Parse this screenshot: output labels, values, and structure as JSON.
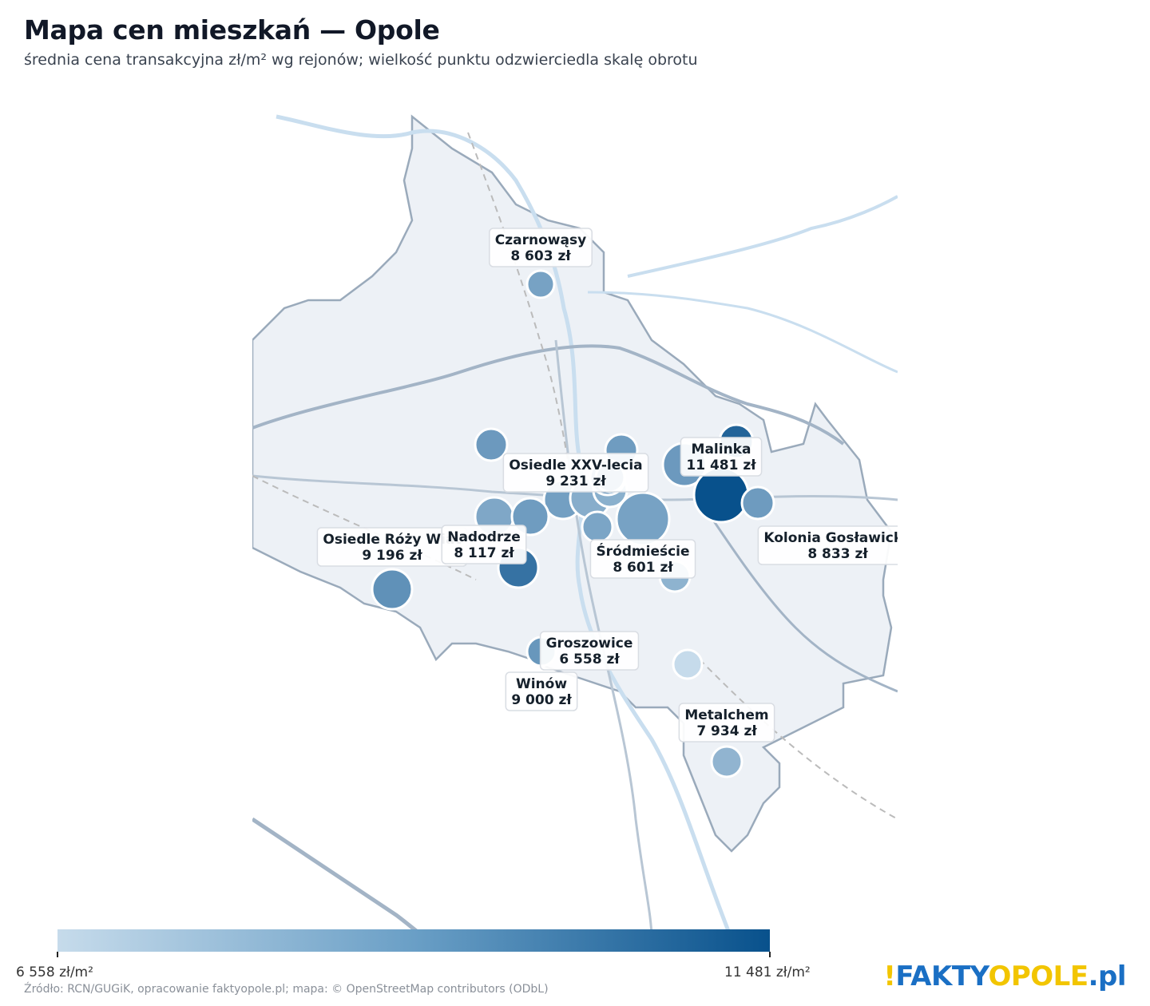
{
  "title": "Mapa cen mieszkań — Opole",
  "subtitle": "średnia cena transakcyjna zł/m² wg rejonów; wielkość punktu odzwierciedla skalę obrotu",
  "colors": {
    "scale_min": "#c6dbeb",
    "scale_max": "#08518c",
    "city_fill": "#edf1f6",
    "road": "#a3b4c6",
    "river": "#c9deef"
  },
  "colorbar": {
    "min_label": "6 558 zł/m²",
    "max_label": "11 481 zł/m²",
    "min_value": 6558,
    "max_value": 11481
  },
  "labels": [
    {
      "name": "Czarnowąsy",
      "price": "8 603 zł"
    },
    {
      "name": "Osiedle XXV-lecia",
      "price": "9 231 zł"
    },
    {
      "name": "Malinka",
      "price": "11 481 zł"
    },
    {
      "name": "Osiedle Róży Wiat",
      "price": "9 196 zł"
    },
    {
      "name": "Nadodrze",
      "price": "8 117 zł"
    },
    {
      "name": "Śródmieście",
      "price": "8 601 zł"
    },
    {
      "name": "Kolonia Gosławicka",
      "price": "8 833 zł"
    },
    {
      "name": "Groszowice",
      "price": "6 558 zł"
    },
    {
      "name": "Winów",
      "price": "9 000 zł"
    },
    {
      "name": "Metalchem",
      "price": "7 934 zł"
    }
  ],
  "points": [
    {
      "price": 8603
    },
    {
      "price": 8900
    },
    {
      "price": 8800
    },
    {
      "price": 8900
    },
    {
      "price": 10800
    },
    {
      "price": 8700
    },
    {
      "price": 8400
    },
    {
      "price": 8800
    },
    {
      "price": 8200
    },
    {
      "price": 8100
    },
    {
      "price": 8900
    },
    {
      "price": 8500
    },
    {
      "price": 8000
    },
    {
      "price": 8601
    },
    {
      "price": 11481
    },
    {
      "price": 8833
    },
    {
      "price": 9196
    },
    {
      "price": 9231
    },
    {
      "price": 10300
    },
    {
      "price": 9000
    },
    {
      "price": 6558
    },
    {
      "price": 7934
    }
  ],
  "source": "Źródło: RCN/GUGiK, opracowanie faktyopole.pl; mapa: © OpenStreetMap contributors (ODbL)",
  "logo": {
    "part1": "!",
    "part2": "FAKTY",
    "part3": "OPOLE",
    "part4": ".pl"
  }
}
